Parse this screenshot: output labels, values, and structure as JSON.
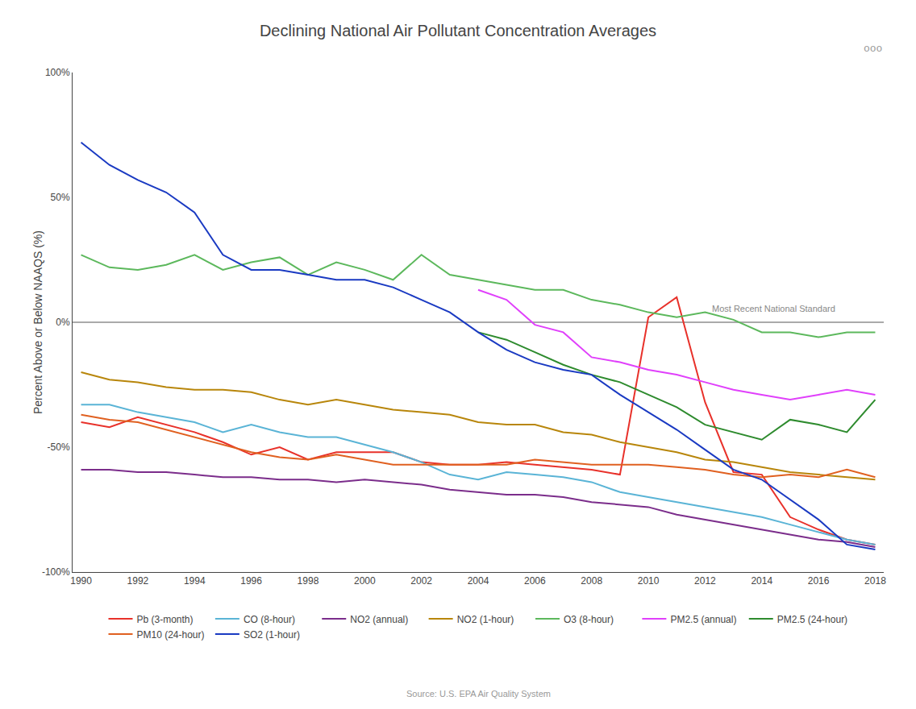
{
  "chart_data": {
    "type": "line",
    "title": "Declining National Air Pollutant Concentration Averages",
    "ylabel": "Percent Above or Below NAAQS (%)",
    "source": "Source: U.S. EPA Air Quality System",
    "annotations": [
      {
        "text": "Most Recent National Standard",
        "x": 2012.2,
        "y": 3
      },
      {
        "text": "ooo"
      }
    ],
    "x": [
      1990,
      1991,
      1992,
      1993,
      1994,
      1995,
      1996,
      1997,
      1998,
      1999,
      2000,
      2001,
      2002,
      2003,
      2004,
      2005,
      2006,
      2007,
      2008,
      2009,
      2010,
      2011,
      2012,
      2013,
      2014,
      2015,
      2016,
      2017,
      2018
    ],
    "xlim": [
      1989.7,
      2018.3
    ],
    "xticks": [
      1990,
      1992,
      1994,
      1996,
      1998,
      2000,
      2002,
      2004,
      2006,
      2008,
      2010,
      2012,
      2014,
      2016,
      2018
    ],
    "ylim": [
      -100,
      100
    ],
    "yticks": [
      {
        "value": -100,
        "label": "-100%"
      },
      {
        "value": -50,
        "label": "-50%"
      },
      {
        "value": 0,
        "label": "0%"
      },
      {
        "value": 50,
        "label": "50%"
      },
      {
        "value": 100,
        "label": "100%"
      }
    ],
    "grid": false,
    "legend": "bottom",
    "series": [
      {
        "name": "Pb (3-month)",
        "color": "#e8312a",
        "values": [
          -40,
          -42,
          -38,
          -41,
          -44,
          -48,
          -53,
          -50,
          -55,
          -52,
          -52,
          -52,
          -56,
          -57,
          -57,
          -56,
          -57,
          -58,
          -59,
          -61,
          2,
          10,
          -32,
          -60,
          -61,
          -78,
          -83,
          -87,
          -89
        ]
      },
      {
        "name": "CO (8-hour)",
        "color": "#5ab4d6",
        "values": [
          -33,
          -33,
          -36,
          -38,
          -40,
          -44,
          -41,
          -44,
          -46,
          -46,
          -49,
          -52,
          -56,
          -61,
          -63,
          -60,
          -61,
          -62,
          -64,
          -68,
          -70,
          -72,
          -74,
          -76,
          -78,
          -81,
          -84,
          -87,
          -89
        ]
      },
      {
        "name": "NO2 (annual)",
        "color": "#7b2d8b",
        "values": [
          -59,
          -59,
          -60,
          -60,
          -61,
          -62,
          -62,
          -63,
          -63,
          -64,
          -63,
          -64,
          -65,
          -67,
          -68,
          -69,
          -69,
          -70,
          -72,
          -73,
          -74,
          -77,
          -79,
          -81,
          -83,
          -85,
          -87,
          -88,
          -90
        ]
      },
      {
        "name": "NO2 (1-hour)",
        "color": "#b8860b",
        "values": [
          -20,
          -23,
          -24,
          -26,
          -27,
          -27,
          -28,
          -31,
          -33,
          -31,
          -33,
          -35,
          -36,
          -37,
          -40,
          -41,
          -41,
          -44,
          -45,
          -48,
          -50,
          -52,
          -55,
          -56,
          -58,
          -60,
          -61,
          -62,
          -63
        ]
      },
      {
        "name": "O3 (8-hour)",
        "color": "#5cb85c",
        "values": [
          27,
          22,
          21,
          23,
          27,
          21,
          24,
          26,
          19,
          24,
          21,
          17,
          27,
          19,
          17,
          15,
          13,
          13,
          9,
          7,
          4,
          2,
          4,
          1,
          -4,
          -4,
          -6,
          -4,
          -4
        ]
      },
      {
        "name": "PM2.5 (annual)",
        "color": "#e040fb",
        "values": [
          null,
          null,
          null,
          null,
          null,
          null,
          null,
          null,
          null,
          null,
          null,
          null,
          null,
          null,
          13,
          9,
          -1,
          -4,
          -14,
          -16,
          -19,
          -21,
          -24,
          -27,
          -29,
          -31,
          -29,
          -27,
          -29
        ]
      },
      {
        "name": "PM2.5 (24-hour)",
        "color": "#2e8b2e",
        "values": [
          null,
          null,
          null,
          null,
          null,
          null,
          null,
          null,
          null,
          null,
          null,
          null,
          null,
          null,
          -4,
          -7,
          -12,
          -17,
          -21,
          -24,
          -29,
          -34,
          -41,
          -44,
          -47,
          -39,
          -41,
          -44,
          -31
        ]
      },
      {
        "name": "PM10 (24-hour)",
        "color": "#e06020",
        "values": [
          -37,
          -39,
          -40,
          -43,
          -46,
          -49,
          -52,
          -54,
          -55,
          -53,
          -55,
          -57,
          -57,
          -57,
          -57,
          -57,
          -55,
          -56,
          -57,
          -57,
          -57,
          -58,
          -59,
          -61,
          -62,
          -61,
          -62,
          -59,
          -62
        ]
      },
      {
        "name": "SO2 (1-hour)",
        "color": "#1a3ac2",
        "values": [
          72,
          63,
          57,
          52,
          44,
          27,
          21,
          21,
          19,
          17,
          17,
          14,
          9,
          4,
          -4,
          -11,
          -16,
          -19,
          -21,
          -29,
          -36,
          -43,
          -51,
          -59,
          -63,
          -71,
          -79,
          -89,
          -91
        ]
      }
    ]
  }
}
